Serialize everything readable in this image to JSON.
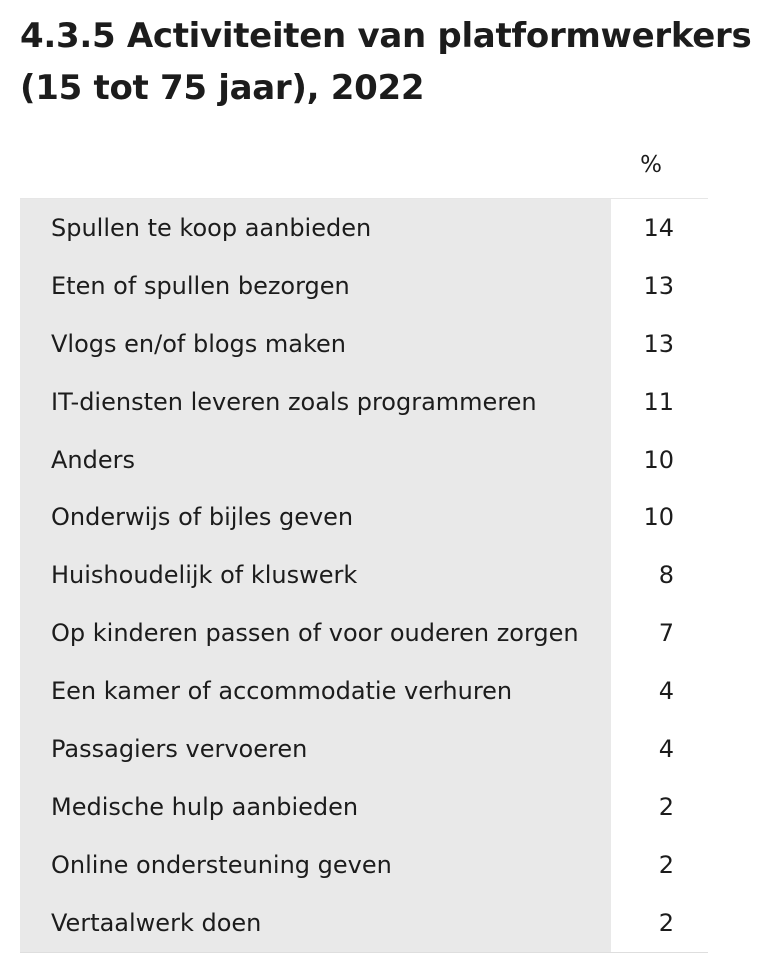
{
  "title": "4.3.5 Activiteiten van platformwerkers (15 tot 75 jaar), 2022",
  "chart_data": {
    "type": "table",
    "title": "4.3.5 Activiteiten van platformwerkers (15 tot 75 jaar), 2022",
    "unit": "%",
    "categories": [
      "Spullen te koop aanbieden",
      "Eten of spullen bezorgen",
      "Vlogs en/of blogs maken",
      "IT-diensten leveren zoals programmeren",
      "Anders",
      "Onderwijs of bijles geven",
      "Huishoudelijk of kluswerk",
      "Op kinderen passen of voor ouderen zorgen",
      "Een kamer of accommodatie verhuren",
      "Passagiers vervoeren",
      "Medische hulp aanbieden",
      "Online ondersteuning geven",
      "Vertaalwerk doen"
    ],
    "values": [
      14,
      13,
      13,
      11,
      10,
      10,
      8,
      7,
      4,
      4,
      2,
      2,
      2
    ]
  }
}
